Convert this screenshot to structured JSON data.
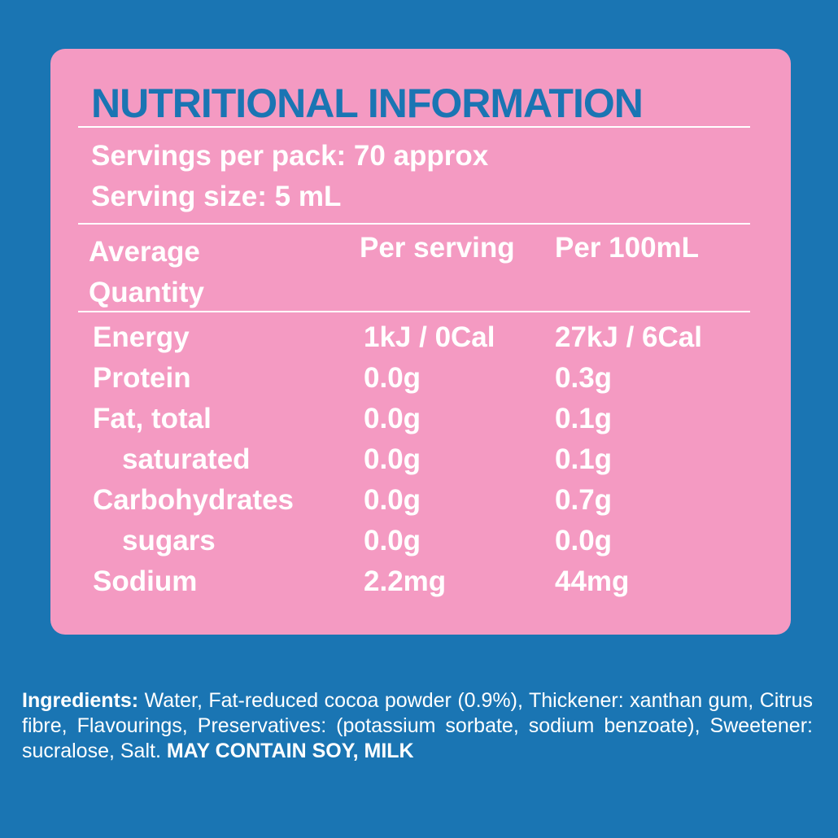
{
  "panel": {
    "title": "NUTRITIONAL INFORMATION",
    "servings_per_pack": "Servings per pack:  70 approx",
    "serving_size": "Serving size: 5 mL"
  },
  "table": {
    "header": [
      "Average Quantity",
      "Per serving",
      "Per 100mL"
    ],
    "rows": [
      [
        "Energy",
        "1kJ / 0Cal",
        "27kJ / 6Cal"
      ],
      [
        "Protein",
        "0.0g",
        "0.3g"
      ],
      [
        "Fat, total",
        "0.0g",
        "0.1g"
      ],
      [
        "saturated",
        "0.0g",
        "0.1g"
      ],
      [
        "Carbohydrates",
        "0.0g",
        "0.7g"
      ],
      [
        "sugars",
        "0.0g",
        "0.0g"
      ],
      [
        "Sodium",
        "2.2mg",
        "44mg"
      ]
    ]
  },
  "ingredients": {
    "label": "Ingredients:",
    "text": " Water, Fat-reduced cocoa powder (0.9%), Thickener: xanthan gum, Citrus fibre, Flavourings, Preservatives: (potassium sorbate, sodium benzoate), Sweetener: sucralose, Salt. ",
    "allergens": "MAY CONTAIN SOY, MILK"
  }
}
